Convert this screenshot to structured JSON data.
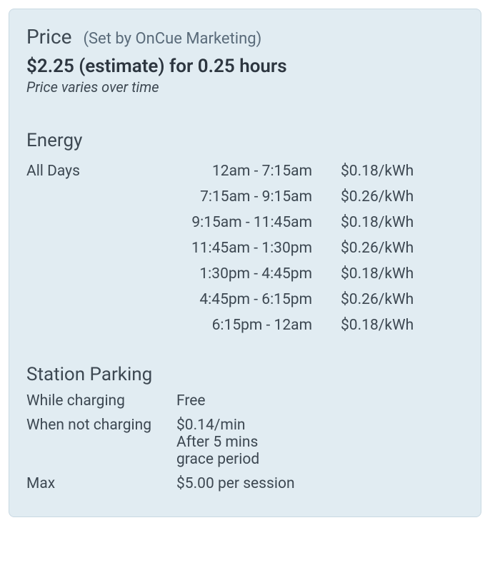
{
  "price": {
    "title": "Price",
    "set_by": "(Set by OnCue Marketing)",
    "estimate": "$2.25 (estimate) for 0.25 hours",
    "varies_note": "Price varies over time"
  },
  "energy": {
    "title": "Energy",
    "day_label": "All Days",
    "rows": [
      {
        "time": "12am - 7:15am",
        "rate": "$0.18/kWh"
      },
      {
        "time": "7:15am - 9:15am",
        "rate": "$0.26/kWh"
      },
      {
        "time": "9:15am - 11:45am",
        "rate": "$0.18/kWh"
      },
      {
        "time": "11:45am - 1:30pm",
        "rate": "$0.26/kWh"
      },
      {
        "time": "1:30pm - 4:45pm",
        "rate": "$0.18/kWh"
      },
      {
        "time": "4:45pm - 6:15pm",
        "rate": "$0.26/kWh"
      },
      {
        "time": "6:15pm - 12am",
        "rate": "$0.18/kWh"
      }
    ]
  },
  "parking": {
    "title": "Station Parking",
    "rows": [
      {
        "label": "While charging",
        "lines": [
          "Free"
        ]
      },
      {
        "label": "When not charging",
        "lines": [
          "$0.14/min",
          "After 5 mins",
          "grace period"
        ]
      },
      {
        "label": "Max",
        "lines": [
          "$5.00 per session"
        ]
      }
    ]
  },
  "style": {
    "card_bg": "#e1ecf2",
    "card_border": "#c9d9e2",
    "text_primary": "#3d4852",
    "text_secondary": "#5a6b7a",
    "text_strong": "#2d3640",
    "title_fontsize": 28,
    "subtitle_fontsize": 22,
    "estimate_fontsize": 26,
    "body_fontsize": 21
  }
}
